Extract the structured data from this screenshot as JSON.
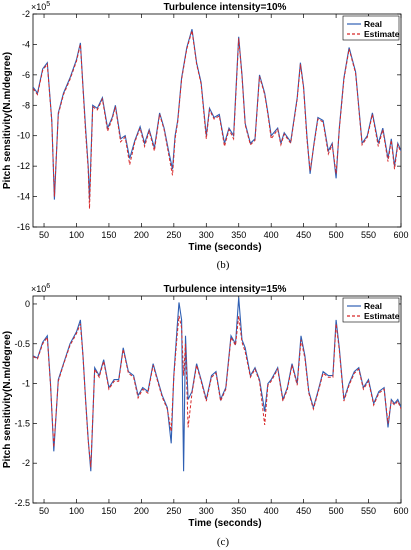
{
  "chart_data": [
    {
      "type": "line",
      "title": "Turbulence intensity=10%",
      "xlabel": "Time (seconds)",
      "ylabel": "Pitch sensitivity(N.m/degree)",
      "caption": "(b)",
      "y_multiplier": "×10",
      "y_exponent": "5",
      "xlim": [
        33,
        600
      ],
      "ylim": [
        -16,
        -2
      ],
      "xticks": [
        "50",
        "100",
        "150",
        "200",
        "250",
        "300",
        "350",
        "400",
        "450",
        "500",
        "550",
        "600"
      ],
      "yticks": [
        "-2",
        "-4",
        "-6",
        "-8",
        "-10",
        "-12",
        "-14",
        "-16"
      ],
      "xtick_values": [
        50,
        100,
        150,
        200,
        250,
        300,
        350,
        400,
        450,
        500,
        550,
        600
      ],
      "ytick_values": [
        -2,
        -4,
        -6,
        -8,
        -10,
        -12,
        -14,
        -16
      ],
      "grid": false,
      "legend": "top-right",
      "series": [
        {
          "name": "Real",
          "color": "#2f5fb3",
          "style": "solid",
          "x": [
            33,
            40,
            48,
            55,
            62,
            66,
            72,
            80,
            90,
            100,
            106,
            110,
            114,
            118,
            120,
            125,
            132,
            140,
            148,
            155,
            160,
            168,
            175,
            182,
            190,
            198,
            205,
            212,
            220,
            228,
            235,
            242,
            248,
            252,
            256,
            262,
            270,
            278,
            285,
            292,
            300,
            305,
            312,
            320,
            328,
            335,
            342,
            350,
            355,
            360,
            368,
            375,
            382,
            390,
            395,
            400,
            410,
            415,
            420,
            430,
            440,
            445,
            450,
            455,
            460,
            466,
            472,
            480,
            488,
            494,
            500,
            505,
            512,
            520,
            530,
            540,
            548,
            556,
            565,
            572,
            580,
            585,
            590,
            595,
            600
          ],
          "values": [
            -6.8,
            -7.2,
            -5.6,
            -5.2,
            -9.0,
            -14.2,
            -8.5,
            -7.2,
            -6.2,
            -5.0,
            -3.9,
            -6.8,
            -9.5,
            -12.0,
            -14.2,
            -8.0,
            -8.2,
            -7.5,
            -9.5,
            -8.8,
            -8.0,
            -10.2,
            -10.0,
            -11.5,
            -10.3,
            -9.4,
            -10.5,
            -9.6,
            -10.8,
            -8.5,
            -9.5,
            -11.0,
            -12.2,
            -10.0,
            -9.0,
            -6.2,
            -4.2,
            -3.0,
            -5.2,
            -6.5,
            -10.0,
            -8.2,
            -8.8,
            -8.6,
            -10.5,
            -9.5,
            -10.0,
            -3.5,
            -6.0,
            -9.2,
            -10.5,
            -10.2,
            -6.0,
            -7.2,
            -8.5,
            -10.0,
            -9.5,
            -10.5,
            -9.8,
            -10.4,
            -7.5,
            -5.2,
            -6.8,
            -10.0,
            -12.5,
            -10.5,
            -8.8,
            -9.0,
            -11.0,
            -10.5,
            -12.8,
            -9.5,
            -6.2,
            -4.2,
            -5.8,
            -10.5,
            -10.0,
            -8.5,
            -10.5,
            -9.5,
            -11.5,
            -10.2,
            -12.0,
            -10.5,
            -11.0
          ]
        },
        {
          "name": "Estimate",
          "color": "#d62728",
          "style": "dashed",
          "x": [
            33,
            40,
            48,
            55,
            62,
            66,
            72,
            80,
            90,
            100,
            106,
            110,
            114,
            118,
            120,
            125,
            132,
            140,
            148,
            155,
            160,
            168,
            175,
            182,
            190,
            198,
            205,
            212,
            220,
            228,
            235,
            242,
            248,
            252,
            256,
            262,
            270,
            278,
            285,
            292,
            300,
            305,
            312,
            320,
            328,
            335,
            342,
            350,
            355,
            360,
            368,
            375,
            382,
            390,
            395,
            400,
            410,
            415,
            420,
            430,
            440,
            445,
            450,
            455,
            460,
            466,
            472,
            480,
            488,
            494,
            500,
            505,
            512,
            520,
            530,
            540,
            548,
            556,
            565,
            572,
            580,
            585,
            590,
            595,
            600
          ],
          "values": [
            -6.9,
            -7.3,
            -5.7,
            -5.3,
            -9.1,
            -14.0,
            -8.6,
            -7.3,
            -6.3,
            -5.1,
            -4.0,
            -6.9,
            -9.8,
            -12.2,
            -14.8,
            -8.1,
            -8.3,
            -7.6,
            -9.7,
            -8.9,
            -8.1,
            -10.4,
            -10.1,
            -11.9,
            -10.4,
            -9.5,
            -10.7,
            -9.7,
            -11.0,
            -8.6,
            -9.6,
            -11.2,
            -12.6,
            -10.2,
            -9.1,
            -6.3,
            -4.3,
            -3.1,
            -5.3,
            -6.6,
            -10.2,
            -8.3,
            -8.9,
            -8.7,
            -10.7,
            -9.6,
            -10.2,
            -3.6,
            -6.1,
            -9.3,
            -10.6,
            -10.3,
            -6.1,
            -7.3,
            -8.6,
            -10.2,
            -9.6,
            -10.6,
            -9.9,
            -10.5,
            -7.6,
            -5.3,
            -6.9,
            -10.2,
            -12.3,
            -10.6,
            -8.9,
            -9.1,
            -11.2,
            -10.6,
            -12.5,
            -9.6,
            -6.3,
            -4.3,
            -5.9,
            -10.6,
            -10.1,
            -8.6,
            -10.7,
            -9.6,
            -11.7,
            -10.3,
            -12.2,
            -10.6,
            -11.1
          ]
        }
      ]
    },
    {
      "type": "line",
      "title": "Turbulence intensity=15%",
      "xlabel": "Time (seconds)",
      "ylabel": "Pitch sensitivity(N.m/degree)",
      "caption": "(c)",
      "y_multiplier": "×10",
      "y_exponent": "6",
      "xlim": [
        33,
        600
      ],
      "ylim": [
        -2.5,
        0.1
      ],
      "xticks": [
        "50",
        "100",
        "150",
        "200",
        "250",
        "300",
        "350",
        "400",
        "450",
        "500",
        "550",
        "600"
      ],
      "yticks": [
        "0",
        "-0.5",
        "-1",
        "-1.5",
        "-2",
        "-2.5"
      ],
      "xtick_values": [
        50,
        100,
        150,
        200,
        250,
        300,
        350,
        400,
        450,
        500,
        550,
        600
      ],
      "ytick_values": [
        0,
        -0.5,
        -1,
        -1.5,
        -2,
        -2.5
      ],
      "grid": false,
      "legend": "top-right",
      "series": [
        {
          "name": "Real",
          "color": "#2f5fb3",
          "style": "solid",
          "x": [
            33,
            40,
            48,
            55,
            60,
            65,
            72,
            80,
            90,
            100,
            106,
            110,
            114,
            118,
            122,
            128,
            135,
            142,
            150,
            158,
            165,
            172,
            180,
            188,
            195,
            202,
            210,
            218,
            225,
            232,
            240,
            246,
            250,
            255,
            258,
            262,
            265,
            268,
            272,
            278,
            285,
            292,
            300,
            308,
            315,
            322,
            330,
            338,
            345,
            350,
            355,
            360,
            368,
            375,
            382,
            390,
            395,
            400,
            410,
            418,
            425,
            432,
            440,
            446,
            452,
            458,
            465,
            472,
            480,
            488,
            495,
            500,
            505,
            512,
            520,
            528,
            535,
            542,
            550,
            558,
            566,
            574,
            580,
            585,
            590,
            595,
            600
          ],
          "values": [
            -0.65,
            -0.68,
            -0.48,
            -0.4,
            -1.0,
            -1.85,
            -0.95,
            -0.75,
            -0.5,
            -0.35,
            -0.2,
            -0.65,
            -1.2,
            -1.7,
            -2.1,
            -0.8,
            -0.9,
            -0.7,
            -1.05,
            -0.95,
            -0.95,
            -0.55,
            -0.85,
            -0.9,
            -1.15,
            -1.05,
            -1.1,
            -0.75,
            -0.95,
            -1.15,
            -1.3,
            -1.75,
            -0.9,
            -0.3,
            0.02,
            -0.2,
            -2.1,
            -0.4,
            -1.2,
            -1.1,
            -0.75,
            -0.95,
            -1.2,
            -0.9,
            -0.85,
            -1.2,
            -1.05,
            -0.4,
            -0.5,
            0.08,
            -0.45,
            -0.55,
            -0.9,
            -0.8,
            -0.95,
            -1.35,
            -1.0,
            -0.95,
            -0.8,
            -1.2,
            -1.05,
            -0.75,
            -1.0,
            -0.4,
            -0.65,
            -1.1,
            -1.3,
            -1.1,
            -0.85,
            -0.9,
            -0.9,
            -0.2,
            -0.55,
            -1.2,
            -1.0,
            -0.85,
            -0.8,
            -1.05,
            -0.95,
            -1.25,
            -1.1,
            -1.05,
            -1.55,
            -1.2,
            -1.25,
            -1.2,
            -1.3
          ]
        },
        {
          "name": "Estimate",
          "color": "#d62728",
          "style": "dashed",
          "x": [
            33,
            40,
            48,
            55,
            60,
            65,
            72,
            80,
            90,
            100,
            106,
            110,
            114,
            118,
            122,
            128,
            135,
            142,
            150,
            158,
            165,
            172,
            180,
            188,
            195,
            202,
            210,
            218,
            225,
            232,
            240,
            246,
            250,
            255,
            258,
            262,
            265,
            268,
            272,
            278,
            285,
            292,
            300,
            308,
            315,
            322,
            330,
            338,
            345,
            350,
            355,
            360,
            368,
            375,
            382,
            390,
            395,
            400,
            410,
            418,
            425,
            432,
            440,
            446,
            452,
            458,
            465,
            472,
            480,
            488,
            495,
            500,
            505,
            512,
            520,
            528,
            535,
            542,
            550,
            558,
            566,
            574,
            580,
            585,
            590,
            595,
            600
          ],
          "values": [
            -0.66,
            -0.69,
            -0.5,
            -0.42,
            -1.02,
            -1.8,
            -0.97,
            -0.76,
            -0.52,
            -0.37,
            -0.25,
            -0.66,
            -1.22,
            -1.72,
            -2.05,
            -0.82,
            -0.92,
            -0.72,
            -1.07,
            -0.97,
            -0.97,
            -0.57,
            -0.87,
            -0.92,
            -1.18,
            -1.07,
            -1.12,
            -0.77,
            -0.97,
            -1.17,
            -1.32,
            -1.6,
            -0.92,
            -0.4,
            -0.15,
            -0.3,
            -0.9,
            -0.5,
            -1.55,
            -1.12,
            -0.77,
            -0.97,
            -1.22,
            -0.92,
            -0.87,
            -1.22,
            -1.07,
            -0.42,
            -0.52,
            -0.15,
            -0.48,
            -0.6,
            -0.92,
            -0.82,
            -0.97,
            -1.52,
            -1.02,
            -0.97,
            -0.82,
            -1.22,
            -1.07,
            -0.77,
            -1.02,
            -0.45,
            -0.68,
            -1.12,
            -1.32,
            -1.12,
            -0.87,
            -0.92,
            -0.92,
            -0.25,
            -0.58,
            -1.22,
            -1.02,
            -0.87,
            -0.82,
            -1.07,
            -0.97,
            -1.27,
            -1.12,
            -1.07,
            -1.5,
            -1.22,
            -1.27,
            -1.22,
            -1.32
          ]
        }
      ]
    }
  ]
}
